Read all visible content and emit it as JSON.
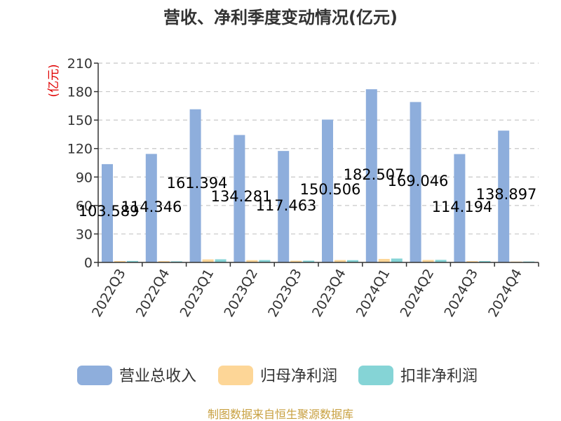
{
  "chart_data": {
    "type": "bar",
    "title": "营收、净利季度变动情况(亿元)",
    "ylabel": "(亿元)",
    "ylim": [
      0,
      210
    ],
    "yticks": [
      0,
      30,
      60,
      90,
      120,
      150,
      180,
      210
    ],
    "grid": true,
    "legend_position": "bottom",
    "categories": [
      "2022Q3",
      "2022Q4",
      "2023Q1",
      "2023Q2",
      "2023Q3",
      "2023Q4",
      "2024Q1",
      "2024Q2",
      "2024Q3",
      "2024Q4"
    ],
    "series": [
      {
        "name": "营业总收入",
        "color": "#8eaedc",
        "values": [
          103.589,
          114.346,
          161.394,
          134.281,
          117.463,
          150.506,
          182.507,
          169.046,
          114.194,
          138.897
        ],
        "labels": [
          "103.589",
          "114.346",
          "161.394",
          "134.281",
          "117.463",
          "150.506",
          "182.507",
          "169.046",
          "114.194",
          "138.897"
        ]
      },
      {
        "name": "归母净利润",
        "color": "#fdd697",
        "values": [
          1.5,
          1.4,
          3.2,
          2.4,
          1.8,
          2.5,
          3.7,
          2.6,
          1.4,
          0.9
        ]
      },
      {
        "name": "扣非净利润",
        "color": "#85d4d6",
        "values": [
          1.6,
          1.2,
          3.3,
          2.5,
          1.9,
          2.4,
          4.1,
          2.7,
          1.5,
          1.0
        ]
      }
    ],
    "source": "制图数据来自恒生聚源数据库"
  }
}
